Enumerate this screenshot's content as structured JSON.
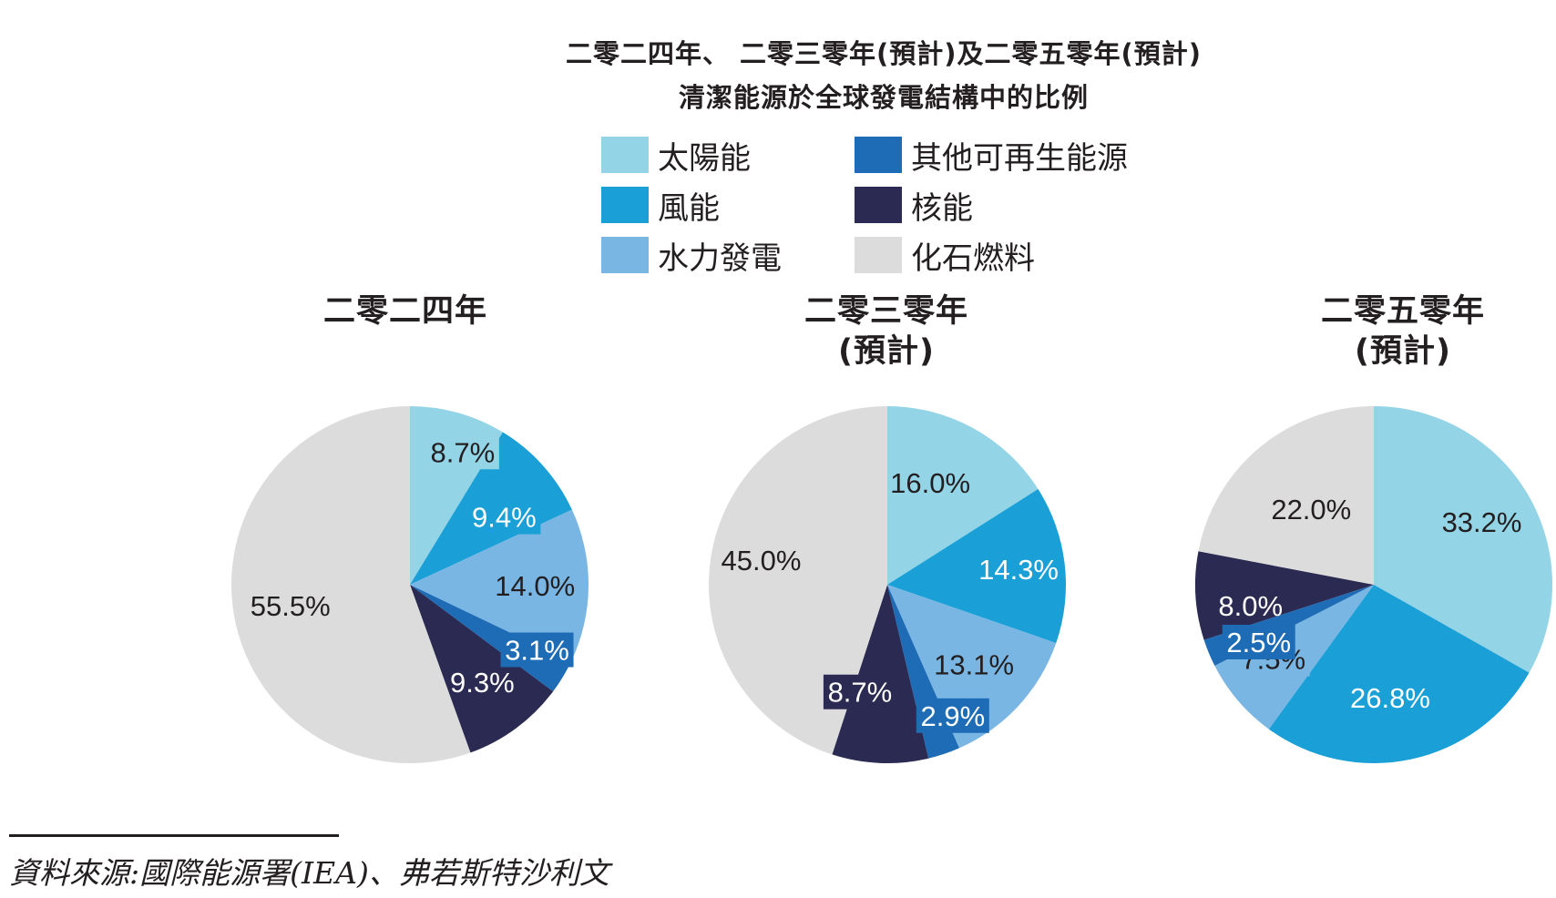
{
  "chart_data": {
    "type": "pie",
    "title_lines": [
      "二零二四年、 二零三零年(預計)及二零五零年(預計)",
      "清潔能源於全球發電結構中的比例"
    ],
    "legend": [
      {
        "label": "太陽能",
        "color": "#93d4e6"
      },
      {
        "label": "風能",
        "color": "#1aa0d6"
      },
      {
        "label": "水力發電",
        "color": "#7ab6e4"
      },
      {
        "label": "其他可再生能源",
        "color": "#1e6cb5"
      },
      {
        "label": "核能",
        "color": "#2a2a52"
      },
      {
        "label": "化石燃料",
        "color": "#dcdcdc"
      }
    ],
    "pies": [
      {
        "title_lines": [
          "二零二四年"
        ],
        "slices": [
          {
            "category": "太陽能",
            "value": 8.7,
            "label": "8.7%"
          },
          {
            "category": "風能",
            "value": 9.4,
            "label": "9.4%"
          },
          {
            "category": "水力發電",
            "value": 14.0,
            "label": "14.0%"
          },
          {
            "category": "其他可再生能源",
            "value": 3.1,
            "label": "3.1%"
          },
          {
            "category": "核能",
            "value": 9.3,
            "label": "9.3%"
          },
          {
            "category": "化石燃料",
            "value": 55.5,
            "label": "55.5%"
          }
        ]
      },
      {
        "title_lines": [
          "二零三零年",
          "(預計)"
        ],
        "slices": [
          {
            "category": "太陽能",
            "value": 16.0,
            "label": "16.0%"
          },
          {
            "category": "風能",
            "value": 14.3,
            "label": "14.3%"
          },
          {
            "category": "水力發電",
            "value": 13.1,
            "label": "13.1%"
          },
          {
            "category": "其他可再生能源",
            "value": 2.9,
            "label": "2.9%"
          },
          {
            "category": "核能",
            "value": 8.7,
            "label": "8.7%"
          },
          {
            "category": "化石燃料",
            "value": 45.0,
            "label": "45.0%"
          }
        ]
      },
      {
        "title_lines": [
          "二零五零年",
          "(預計)"
        ],
        "slices": [
          {
            "category": "太陽能",
            "value": 33.2,
            "label": "33.2%"
          },
          {
            "category": "風能",
            "value": 26.8,
            "label": "26.8%"
          },
          {
            "category": "水力發電",
            "value": 7.5,
            "label": "7.5%"
          },
          {
            "category": "其他可再生能源",
            "value": 2.5,
            "label": "2.5%"
          },
          {
            "category": "核能",
            "value": 8.0,
            "label": "8.0%"
          },
          {
            "category": "化石燃料",
            "value": 22.0,
            "label": "22.0%"
          }
        ]
      }
    ]
  },
  "source": "資料來源:國際能源署(IEA)、弗若斯特沙利文"
}
